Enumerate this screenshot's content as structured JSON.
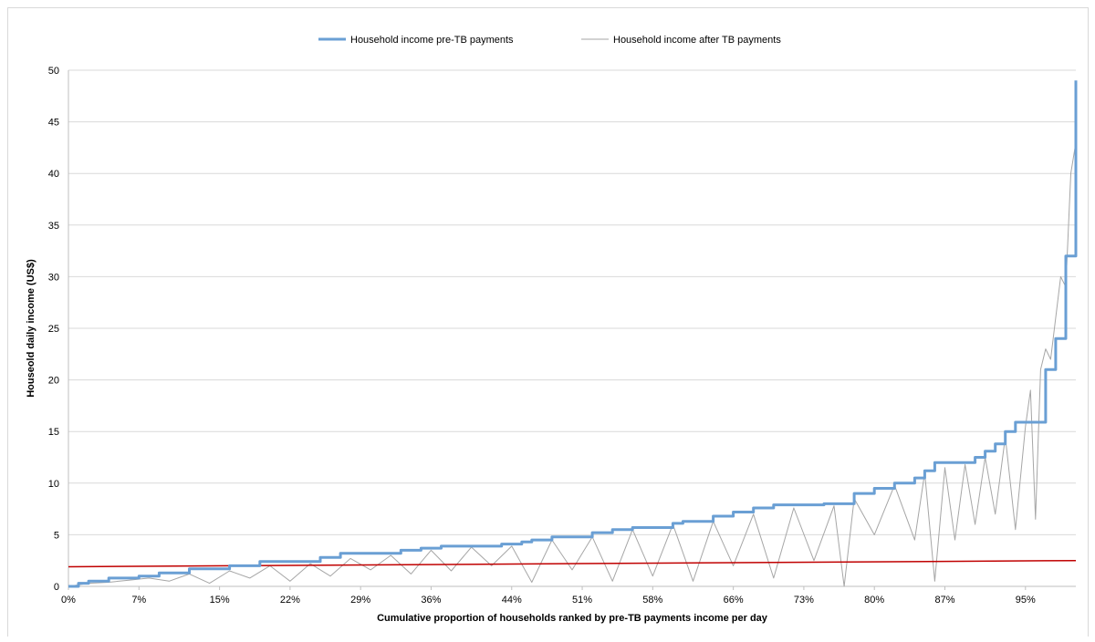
{
  "chart_data": {
    "type": "line",
    "title": "",
    "xlabel": "Cumulative proportion of households ranked by pre-TB payments income per day",
    "ylabel": "Houseold daily income (US$)",
    "x_tick_labels": [
      "0%",
      "7%",
      "15%",
      "22%",
      "29%",
      "36%",
      "44%",
      "51%",
      "58%",
      "66%",
      "73%",
      "80%",
      "87%",
      "95%"
    ],
    "x_ticks": [
      0,
      7,
      15,
      22,
      29,
      36,
      44,
      51,
      58,
      66,
      73,
      80,
      87,
      95
    ],
    "x_range": [
      0,
      100
    ],
    "y_tick_labels": [
      "0",
      "5",
      "10",
      "15",
      "20",
      "25",
      "30",
      "35",
      "40",
      "45",
      "50"
    ],
    "y_ticks": [
      0,
      5,
      10,
      15,
      20,
      25,
      30,
      35,
      40,
      45,
      50
    ],
    "ylim": [
      0,
      50
    ],
    "grid": "horizontal",
    "legend_position": "top-center",
    "series": [
      {
        "name": "Household income pre-TB payments",
        "color": "#6a9fd4",
        "style": "step",
        "x": [
          0,
          1,
          2,
          4,
          7,
          9,
          12,
          16,
          19,
          25,
          27,
          30,
          33,
          35,
          37,
          39,
          41,
          43,
          45,
          46,
          48,
          52,
          54,
          56,
          60,
          61,
          64,
          66,
          68,
          70,
          72,
          75,
          78,
          80,
          82,
          84,
          85,
          86,
          90,
          91,
          92,
          93,
          94,
          97,
          98,
          99,
          100
        ],
        "y": [
          0,
          0.3,
          0.5,
          0.8,
          1.0,
          1.3,
          1.7,
          2.0,
          2.4,
          2.8,
          3.2,
          3.2,
          3.5,
          3.7,
          3.9,
          3.9,
          3.9,
          4.1,
          4.3,
          4.5,
          4.8,
          5.2,
          5.5,
          5.7,
          6.1,
          6.3,
          6.8,
          7.2,
          7.6,
          7.9,
          7.9,
          8.0,
          9.0,
          9.5,
          10.0,
          10.5,
          11.2,
          12.0,
          12.5,
          13.1,
          13.8,
          15.0,
          15.9,
          21.0,
          24.0,
          32.0,
          49.0
        ]
      },
      {
        "name": "Household income after TB payments",
        "color": "#a6a6a6",
        "style": "line",
        "x": [
          0,
          2,
          4,
          6,
          8,
          10,
          12,
          14,
          16,
          18,
          20,
          22,
          24,
          26,
          28,
          30,
          32,
          34,
          36,
          38,
          40,
          42,
          44,
          46,
          48,
          50,
          52,
          54,
          56,
          58,
          60,
          62,
          64,
          66,
          68,
          70,
          72,
          74,
          76,
          77,
          78,
          80,
          82,
          84,
          85,
          86,
          87,
          88,
          89,
          90,
          91,
          92,
          93,
          94,
          95,
          95.5,
          96,
          96.5,
          97,
          97.5,
          98,
          98.5,
          99,
          99.5,
          100
        ],
        "y": [
          0,
          0.3,
          0.4,
          0.6,
          0.8,
          0.5,
          1.2,
          0.3,
          1.5,
          0.8,
          2.0,
          0.5,
          2.2,
          1.0,
          2.7,
          1.6,
          3.0,
          1.2,
          3.5,
          1.5,
          3.8,
          2.0,
          3.9,
          0.4,
          4.5,
          1.6,
          4.8,
          0.5,
          5.5,
          1.0,
          6.0,
          0.5,
          6.3,
          2.0,
          7.0,
          0.8,
          7.6,
          2.5,
          7.8,
          0.0,
          8.5,
          5.0,
          9.8,
          4.5,
          11.0,
          0.5,
          11.5,
          4.5,
          11.8,
          6.0,
          12.5,
          7.0,
          14.5,
          5.5,
          15.5,
          19.0,
          6.5,
          21.0,
          23.0,
          22.0,
          26.0,
          30.0,
          29.0,
          40.0,
          43.0
        ]
      },
      {
        "name": "",
        "color": "#c00000",
        "style": "line",
        "x": [
          0,
          100
        ],
        "y": [
          1.9,
          2.5
        ]
      }
    ]
  }
}
